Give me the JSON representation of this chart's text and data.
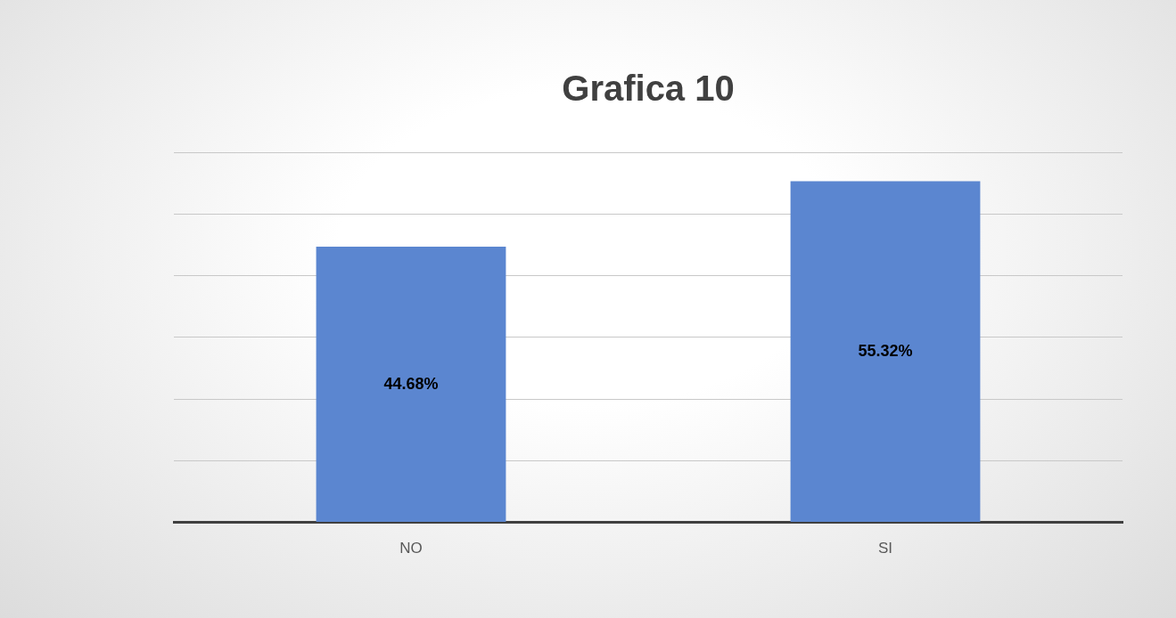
{
  "chart_data": {
    "type": "bar",
    "title": "Grafica 10",
    "categories": [
      "NO",
      "SI"
    ],
    "values": [
      44.68,
      55.32
    ],
    "color": "#5b86d0",
    "value_labels": [
      "44.68%",
      "55.32%"
    ],
    "ylim": [
      0,
      60
    ],
    "yticks": [
      {
        "value": 0,
        "label": null
      },
      {
        "value": 10,
        "label": null
      },
      {
        "value": 20,
        "label": null
      },
      {
        "value": 30,
        "label": null
      },
      {
        "value": 40,
        "label": null
      },
      {
        "value": 50,
        "label": null
      },
      {
        "value": 60,
        "label": null
      }
    ],
    "grid": "y",
    "tick_labels": "x",
    "legend": false
  }
}
